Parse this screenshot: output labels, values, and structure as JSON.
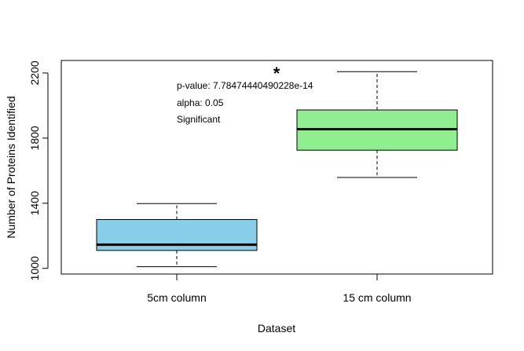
{
  "chart_data": {
    "type": "box",
    "title": "",
    "xlabel": "Dataset",
    "ylabel": "Number of Proteins Identified",
    "ylim": [
      965,
      2277
    ],
    "yticks": [
      1000,
      1400,
      1800,
      2200
    ],
    "grid": false,
    "categories": [
      "5cm column",
      "15 cm column"
    ],
    "boxes": [
      {
        "category": "5cm column",
        "min": 1010,
        "q1": 1110,
        "median": 1145,
        "q3": 1300,
        "max": 1398,
        "color": "#87ceeb"
      },
      {
        "category": "15 cm column",
        "min": 1558,
        "q1": 1726,
        "median": 1855,
        "q3": 1973,
        "max": 2208,
        "color": "#90ee90"
      }
    ],
    "annotations": {
      "star": "*",
      "pvalue": "p-value: 7.78474440490228e-14",
      "alpha": "alpha: 0.05",
      "significance": "Significant"
    }
  }
}
